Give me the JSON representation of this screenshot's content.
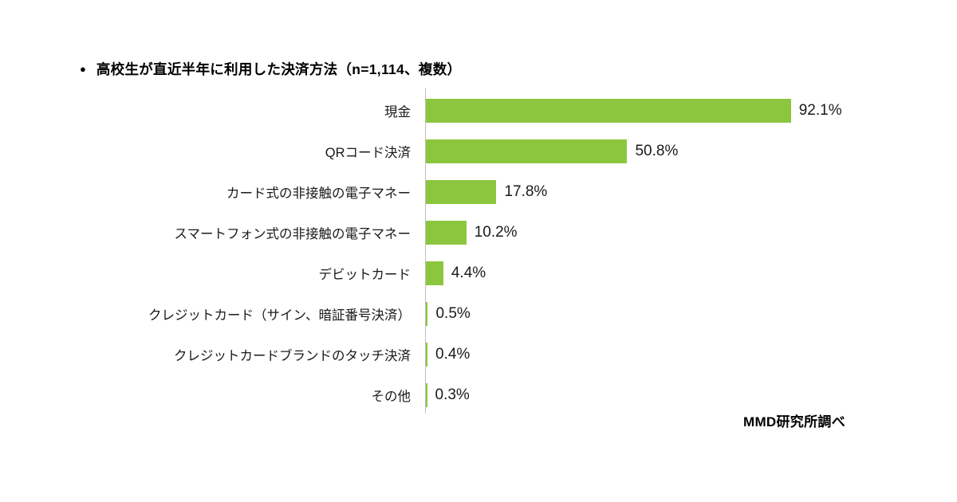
{
  "title": {
    "bullet": "●",
    "text": "高校生が直近半年に利用した決済方法（n=1,114、複数）"
  },
  "source": "MMD研究所調べ",
  "chart_data": {
    "type": "bar",
    "orientation": "horizontal",
    "title": "高校生が直近半年に利用した決済方法（n=1,114、複数）",
    "sample_note": "n=1,114、複数",
    "categories": [
      "現金",
      "QRコード決済",
      "カード式の非接触の電子マネー",
      "スマートフォン式の非接触の電子マネー",
      "デビットカード",
      "クレジットカード（サイン、暗証番号決済）",
      "クレジットカードブランドのタッチ決済",
      "その他"
    ],
    "values": [
      92.1,
      50.8,
      17.8,
      10.2,
      4.4,
      0.5,
      0.4,
      0.3
    ],
    "value_labels": [
      "92.1%",
      "50.8%",
      "17.8%",
      "10.2%",
      "4.4%",
      "0.5%",
      "0.4%",
      "0.3%"
    ],
    "unit": "%",
    "xlim": [
      0,
      100
    ],
    "grid": false,
    "legend": "none",
    "bar_color": "#8CC63F",
    "axis_line_color": "#BFBFBF",
    "text_color": "#1A1A1A",
    "source": "MMD研究所調べ"
  }
}
